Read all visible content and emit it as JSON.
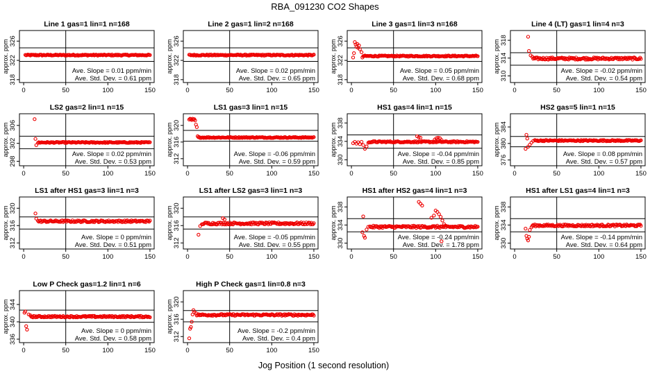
{
  "page_title": "RBA_091230  CO2 Shapes",
  "x_axis_label": "Jog Position (1 second resolution)",
  "chart_data": [
    {
      "type": "scatter",
      "title": "Line 1 gas=1 lin=1 n=168",
      "ylabel": "approx. ppm",
      "xlim": [
        -5,
        155
      ],
      "ylim": [
        317.4,
        328.2
      ],
      "xticks": [
        0,
        50,
        100,
        150
      ],
      "yticks": [
        318,
        322,
        326
      ],
      "vline": 50,
      "hlines": [
        321.8,
        324.6
      ],
      "slope_text": "Ave. Slope = 0.01 ppm/min",
      "sd_text": "Ave. Std. Dev. = 0.61 ppm",
      "lead_points": [],
      "base_level": 323.1,
      "noise": 0.12,
      "x_range": [
        2,
        150
      ],
      "spikes": []
    },
    {
      "type": "scatter",
      "title": "Line 2 gas=1 lin=2 n=168",
      "ylabel": "approx. ppm",
      "xlim": [
        -5,
        155
      ],
      "ylim": [
        317.4,
        328.2
      ],
      "xticks": [
        0,
        50,
        100,
        150
      ],
      "yticks": [
        318,
        322,
        326
      ],
      "vline": 50,
      "hlines": [
        321.8,
        324.6
      ],
      "slope_text": "Ave. Slope = 0.02 ppm/min",
      "sd_text": "Ave. Std. Dev. = 0.65 ppm",
      "lead_points": [],
      "base_level": 323.1,
      "noise": 0.12,
      "x_range": [
        2,
        150
      ],
      "spikes": []
    },
    {
      "type": "scatter",
      "title": "Line 3 gas=1 lin=3 n=168",
      "ylabel": "approx. ppm",
      "xlim": [
        -5,
        155
      ],
      "ylim": [
        317.4,
        328.2
      ],
      "xticks": [
        0,
        50,
        100,
        150
      ],
      "yticks": [
        318,
        322,
        326
      ],
      "vline": 50,
      "hlines": [
        321.8,
        324.6
      ],
      "slope_text": "Ave. Slope = 0.05 ppm/min",
      "sd_text": "Ave. Std. Dev. = 0.68 ppm",
      "lead_points": [
        [
          2,
          322.6
        ],
        [
          3,
          323.5
        ],
        [
          4,
          325.8
        ],
        [
          5,
          325.3
        ],
        [
          6,
          324.8
        ],
        [
          7,
          325.4
        ],
        [
          8,
          324.6
        ],
        [
          9,
          325.1
        ],
        [
          10,
          324.3
        ],
        [
          12,
          323.7
        ],
        [
          13,
          322.6
        ]
      ],
      "base_level": 322.9,
      "noise": 0.12,
      "x_range": [
        14,
        150
      ],
      "spikes": []
    },
    {
      "type": "scatter",
      "title": "Line 4 (LT) gas=1 lin=4 n=3",
      "ylabel": "approx. ppm",
      "xlim": [
        -5,
        155
      ],
      "ylim": [
        308.5,
        320.2
      ],
      "xticks": [
        0,
        50,
        100,
        150
      ],
      "yticks": [
        310,
        314,
        318
      ],
      "vline": 50,
      "hlines": [
        312.4,
        315.2
      ],
      "slope_text": "Ave. Slope = -0.02 ppm/min",
      "sd_text": "Ave. Std. Dev. = 0.54 ppm",
      "lead_points": [
        [
          16,
          318.8
        ],
        [
          17,
          315.6
        ],
        [
          19,
          314.6
        ],
        [
          21,
          314.3
        ],
        [
          24,
          313.9
        ]
      ],
      "base_level": 313.9,
      "noise": 0.25,
      "x_range": [
        22,
        150
      ],
      "spikes": []
    },
    {
      "type": "scatter",
      "title": "LS2 gas=2 lin=1 n=15",
      "ylabel": "approx. ppm",
      "xlim": [
        -5,
        155
      ],
      "ylim": [
        297,
        308.6
      ],
      "xticks": [
        0,
        50,
        100,
        150
      ],
      "yticks": [
        298,
        302,
        306
      ],
      "vline": 50,
      "hlines": [
        300.8,
        303.6
      ],
      "slope_text": "Ave. Slope = 0.02 ppm/min",
      "sd_text": "Ave. Std. Dev. = 0.53 ppm",
      "lead_points": [
        [
          13,
          307.4
        ],
        [
          14,
          303.0
        ],
        [
          15,
          301.6
        ],
        [
          17,
          302.1
        ]
      ],
      "base_level": 302.2,
      "noise": 0.12,
      "x_range": [
        18,
        150
      ],
      "spikes": []
    },
    {
      "type": "scatter",
      "title": "LS1 gas=3 lin=1 n=15",
      "ylabel": "approx. ppm",
      "xlim": [
        -5,
        155
      ],
      "ylim": [
        310.3,
        322.8
      ],
      "xticks": [
        0,
        50,
        100,
        150
      ],
      "yticks": [
        312,
        316,
        320
      ],
      "vline": 50,
      "hlines": [
        316.2,
        318.8
      ],
      "slope_text": "Ave. Slope = -0.06 ppm/min",
      "sd_text": "Ave. Std. Dev. = 0.59 ppm",
      "lead_points": [
        [
          2,
          321.4
        ],
        [
          3,
          321.6
        ],
        [
          4,
          321.5
        ],
        [
          5,
          321.3
        ],
        [
          6,
          321.6
        ],
        [
          7,
          321.4
        ],
        [
          8,
          321.5
        ],
        [
          9,
          321.2
        ],
        [
          10,
          320.2
        ],
        [
          11,
          319.6
        ],
        [
          12,
          317.4
        ]
      ],
      "base_level": 317.1,
      "noise": 0.12,
      "x_range": [
        13,
        150
      ],
      "spikes": []
    },
    {
      "type": "scatter",
      "title": "HS1 gas=4 lin=1 n=15",
      "ylabel": "approx. ppm",
      "xlim": [
        -5,
        155
      ],
      "ylim": [
        328.7,
        340
      ],
      "xticks": [
        0,
        50,
        100,
        150
      ],
      "yticks": [
        330,
        334,
        338
      ],
      "vline": 50,
      "hlines": [
        332.5,
        335.4
      ],
      "slope_text": "Ave. Slope = -0.04 ppm/min",
      "sd_text": "Ave. Std. Dev. = 0.85 ppm",
      "lead_points": [
        [
          2,
          333.6
        ],
        [
          4,
          333.9
        ],
        [
          6,
          333.5
        ],
        [
          8,
          333.8
        ],
        [
          10,
          333.4
        ],
        [
          12,
          333.9
        ],
        [
          14,
          333.2
        ],
        [
          16,
          332.4
        ],
        [
          18,
          332.9
        ],
        [
          20,
          333.7
        ]
      ],
      "base_level": 333.9,
      "noise": 0.14,
      "x_range": [
        21,
        150
      ],
      "spikes": [
        [
          78,
          335.1
        ],
        [
          80,
          334.9
        ],
        [
          82,
          334.8
        ],
        [
          99,
          334.4
        ],
        [
          101,
          334.7
        ],
        [
          103,
          334.8
        ],
        [
          105,
          334.7
        ],
        [
          107,
          334.3
        ]
      ]
    },
    {
      "type": "scatter",
      "title": "HS2 gas=5 lin=1 n=15",
      "ylabel": "approx. ppm",
      "xlim": [
        -5,
        155
      ],
      "ylim": [
        374.6,
        387.2
      ],
      "xticks": [
        0,
        50,
        100,
        150
      ],
      "yticks": [
        376,
        380,
        384
      ],
      "vline": 50,
      "hlines": [
        379.2,
        381.7
      ],
      "slope_text": "Ave. Slope = 0.08 ppm/min",
      "sd_text": "Ave. Std. Dev. = 0.57 ppm",
      "lead_points": [
        [
          13,
          378.7
        ],
        [
          14,
          382.1
        ],
        [
          15,
          381.2
        ],
        [
          16,
          379.2
        ],
        [
          18,
          379.7
        ],
        [
          20,
          380.2
        ],
        [
          22,
          380.6
        ]
      ],
      "base_level": 380.7,
      "noise": 0.15,
      "x_range": [
        24,
        150
      ],
      "spikes": []
    },
    {
      "type": "scatter",
      "title": "LS1 after HS1 gas=3 lin=1 n=3",
      "ylabel": "approx. ppm",
      "xlim": [
        -5,
        155
      ],
      "ylim": [
        310.6,
        322.6
      ],
      "xticks": [
        0,
        50,
        100,
        150
      ],
      "yticks": [
        312,
        316,
        320
      ],
      "vline": 50,
      "hlines": [
        315.2,
        318.0
      ],
      "slope_text": "Ave. Slope = 0 ppm/min",
      "sd_text": "Ave. Std. Dev. = 0.51 ppm",
      "lead_points": [
        [
          14,
          318.8
        ],
        [
          15,
          317.6
        ],
        [
          17,
          317.1
        ]
      ],
      "base_level": 317.0,
      "noise": 0.22,
      "x_range": [
        18,
        150
      ],
      "spikes": []
    },
    {
      "type": "scatter",
      "title": "LS1 after LS2 gas=3 lin=1 n=3",
      "ylabel": "approx. ppm",
      "xlim": [
        -5,
        155
      ],
      "ylim": [
        310.6,
        322.6
      ],
      "xticks": [
        0,
        50,
        100,
        150
      ],
      "yticks": [
        312,
        316,
        320
      ],
      "vline": 50,
      "hlines": [
        315.2,
        318.0
      ],
      "slope_text": "Ave. Slope = -0.05 ppm/min",
      "sd_text": "Ave. Std. Dev. = 0.55 ppm",
      "lead_points": [
        [
          13,
          313.9
        ],
        [
          15,
          315.9
        ],
        [
          17,
          316.3
        ]
      ],
      "base_level": 316.5,
      "noise": 0.25,
      "x_range": [
        18,
        150
      ],
      "spikes": [
        [
          42,
          317.7
        ],
        [
          44,
          317.4
        ]
      ]
    },
    {
      "type": "scatter",
      "title": "HS1 after HS2 gas=4 lin=1 n=3",
      "ylabel": "approx. ppm",
      "xlim": [
        -5,
        155
      ],
      "ylim": [
        328.7,
        340.2
      ],
      "xticks": [
        0,
        50,
        100,
        150
      ],
      "yticks": [
        330,
        334,
        338
      ],
      "vline": 50,
      "hlines": [
        332.5,
        335.4
      ],
      "slope_text": "Ave. Slope = -0.24 ppm/min",
      "sd_text": "Ave. Std. Dev. = 1.78 ppm",
      "lead_points": [
        [
          13,
          332.4
        ],
        [
          14,
          335.9
        ],
        [
          15,
          331.6
        ],
        [
          16,
          331.2
        ],
        [
          18,
          333.0
        ],
        [
          20,
          333.6
        ]
      ],
      "base_level": 333.6,
      "noise": 0.25,
      "x_range": [
        22,
        150
      ],
      "spikes": [
        [
          80,
          339.1
        ],
        [
          82,
          338.7
        ],
        [
          84,
          338.3
        ],
        [
          95,
          335.6
        ],
        [
          98,
          336.1
        ],
        [
          100,
          337.2
        ],
        [
          102,
          336.9
        ],
        [
          104,
          336.4
        ],
        [
          106,
          335.8
        ],
        [
          108,
          335.0
        ],
        [
          110,
          334.2
        ],
        [
          107,
          330.4
        ],
        [
          112,
          333.5
        ]
      ]
    },
    {
      "type": "scatter",
      "title": "HS1 after LS1 gas=4 lin=1 n=3",
      "ylabel": "approx. ppm",
      "xlim": [
        -5,
        155
      ],
      "ylim": [
        328.7,
        340.2
      ],
      "xticks": [
        0,
        50,
        100,
        150
      ],
      "yticks": [
        330,
        334,
        338
      ],
      "vline": 50,
      "hlines": [
        332.5,
        335.4
      ],
      "slope_text": "Ave. Slope = -0.14 ppm/min",
      "sd_text": "Ave. Std. Dev. = 0.64 ppm",
      "lead_points": [
        [
          13,
          333.2
        ],
        [
          14,
          331.6
        ],
        [
          15,
          331.0
        ],
        [
          16,
          330.6
        ],
        [
          17,
          331.4
        ],
        [
          18,
          332.9
        ],
        [
          20,
          333.5
        ]
      ],
      "base_level": 333.9,
      "noise": 0.22,
      "x_range": [
        21,
        150
      ],
      "spikes": []
    },
    {
      "type": "scatter",
      "title": "Low P Check gas=1.2 lin=1 n=6",
      "ylabel": "approx. ppm",
      "xlim": [
        -5,
        155
      ],
      "ylim": [
        335.2,
        347.2
      ],
      "xticks": [
        0,
        50,
        100,
        150
      ],
      "yticks": [
        336,
        340,
        344
      ],
      "vline": 50,
      "hlines": [
        339.9,
        342.7
      ],
      "slope_text": "Ave. Slope = 0 ppm/min",
      "sd_text": "Ave. Std. Dev. = 0.58 ppm",
      "lead_points": [
        [
          1,
          342.1
        ],
        [
          2,
          342.4
        ],
        [
          3,
          339.0
        ],
        [
          4,
          338.2
        ],
        [
          6,
          341.7
        ],
        [
          8,
          341.5
        ]
      ],
      "base_level": 341.2,
      "noise": 0.18,
      "x_range": [
        9,
        150
      ],
      "spikes": []
    },
    {
      "type": "scatter",
      "title": "High P Check gas=1 lin=0.8 n=3",
      "ylabel": "approx. ppm",
      "xlim": [
        -5,
        155
      ],
      "ylim": [
        310.6,
        322.6
      ],
      "xticks": [
        0,
        50,
        100,
        150
      ],
      "yticks": [
        312,
        316,
        320
      ],
      "vline": 50,
      "hlines": [
        315.4,
        318.0
      ],
      "slope_text": "Ave. Slope = -0.2 ppm/min",
      "sd_text": "Ave. Std. Dev. = 0.4 ppm",
      "lead_points": [
        [
          2,
          311.6
        ],
        [
          3,
          313.8
        ],
        [
          4,
          314.2
        ],
        [
          5,
          315.4
        ],
        [
          6,
          317.1
        ],
        [
          7,
          318.1
        ],
        [
          8,
          317.6
        ],
        [
          10,
          317.4
        ]
      ],
      "base_level": 317.0,
      "noise": 0.2,
      "x_range": [
        11,
        150
      ],
      "spikes": []
    }
  ]
}
